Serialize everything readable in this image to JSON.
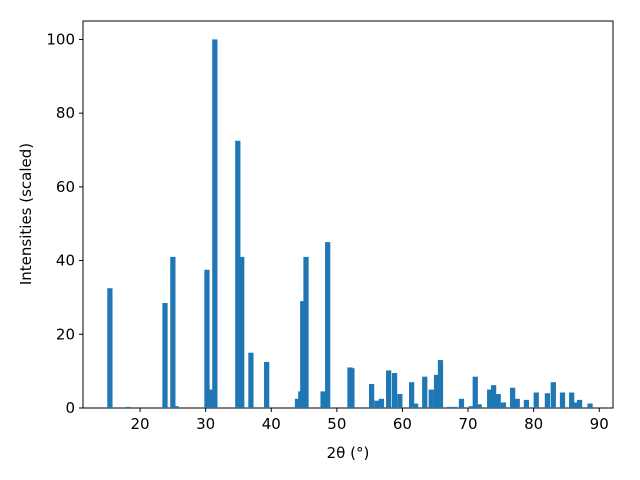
{
  "chart_data": {
    "type": "bar",
    "xlabel": "2θ (°)",
    "ylabel": "Intensities (scaled)",
    "color": "#1f77b4",
    "x": [
      15.4,
      18.2,
      23.8,
      25.0,
      25.5,
      30.2,
      30.9,
      31.4,
      34.9,
      35.5,
      36.9,
      39.3,
      44.0,
      44.5,
      44.8,
      45.3,
      47.9,
      48.6,
      52.0,
      52.3,
      55.3,
      56.1,
      56.8,
      57.9,
      58.8,
      59.6,
      61.4,
      62.0,
      63.4,
      64.4,
      65.2,
      65.8,
      67.2,
      67.9,
      69.0,
      70.5,
      71.1,
      71.7,
      73.3,
      73.9,
      74.6,
      75.4,
      76.8,
      77.5,
      78.9,
      80.4,
      82.1,
      83.0,
      84.4,
      85.8,
      86.4,
      87.0,
      88.6
    ],
    "values": [
      32.5,
      0.3,
      28.5,
      41,
      0.5,
      37.5,
      5,
      100,
      72.5,
      41,
      15,
      12.5,
      2.5,
      4.5,
      29,
      41,
      4.5,
      45,
      11,
      10.8,
      6.5,
      2,
      2.5,
      10.2,
      9.5,
      3.8,
      7,
      1.2,
      8.5,
      5,
      9,
      13,
      0.3,
      0.3,
      2.5,
      0.5,
      8.5,
      1,
      5,
      6.2,
      3.8,
      1.5,
      5.5,
      2.5,
      2.2,
      4.2,
      4,
      7,
      4.2,
      4.2,
      1.5,
      2.2,
      1.2
    ],
    "xlim": [
      11.3,
      92.1
    ],
    "ylim": [
      0,
      105
    ],
    "xticks": [
      20,
      30,
      40,
      50,
      60,
      70,
      80,
      90
    ],
    "yticks": [
      0,
      20,
      40,
      60,
      80,
      100
    ]
  }
}
